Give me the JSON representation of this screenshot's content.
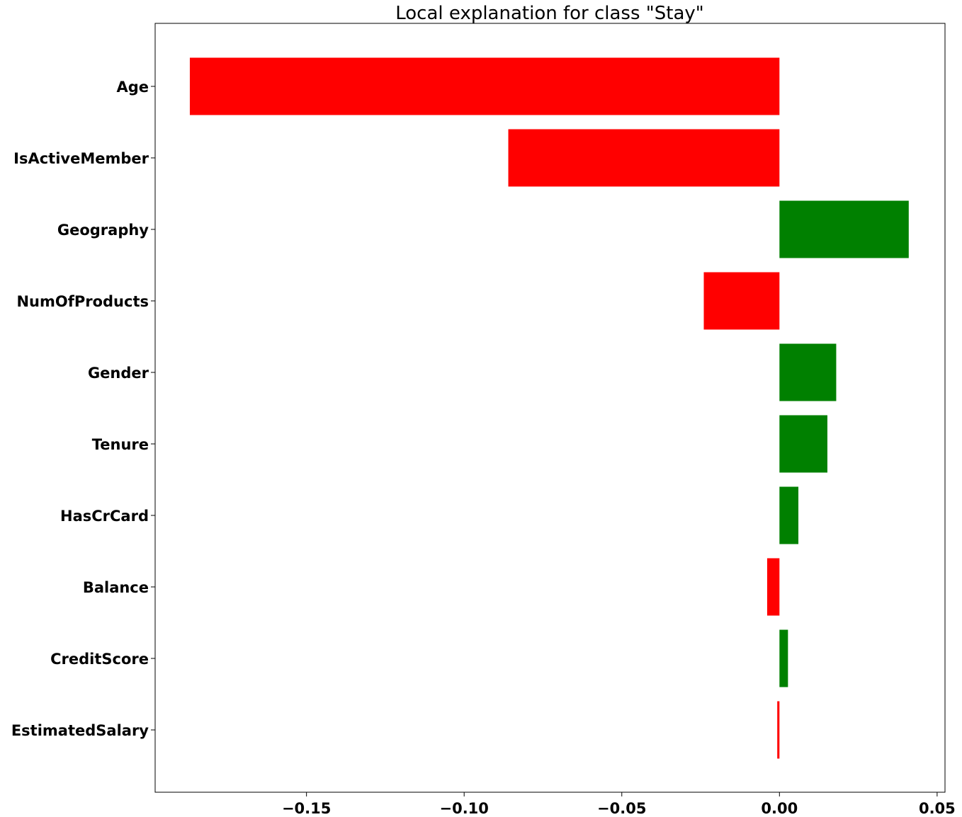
{
  "chart_data": {
    "type": "bar",
    "orientation": "horizontal",
    "title": "Local explanation for class \"Stay\"",
    "xlabel": "",
    "ylabel": "",
    "categories": [
      "Age",
      "IsActiveMember",
      "Geography",
      "NumOfProducts",
      "Gender",
      "Tenure",
      "HasCrCard",
      "Balance",
      "CreditScore",
      "EstimatedSalary"
    ],
    "values": [
      -0.187,
      -0.086,
      0.041,
      -0.024,
      0.018,
      0.0152,
      0.006,
      -0.0039,
      0.0027,
      -0.0007
    ],
    "xlim": [
      -0.198,
      0.0525
    ],
    "xticks": [
      -0.15,
      -0.1,
      -0.05,
      0.0,
      0.05
    ],
    "xtick_labels": [
      "−0.15",
      "−0.10",
      "−0.05",
      "0.00",
      "0.05"
    ],
    "colors": {
      "positive": "#008000",
      "negative": "#ff0000"
    },
    "grid": false,
    "legend": "none"
  }
}
